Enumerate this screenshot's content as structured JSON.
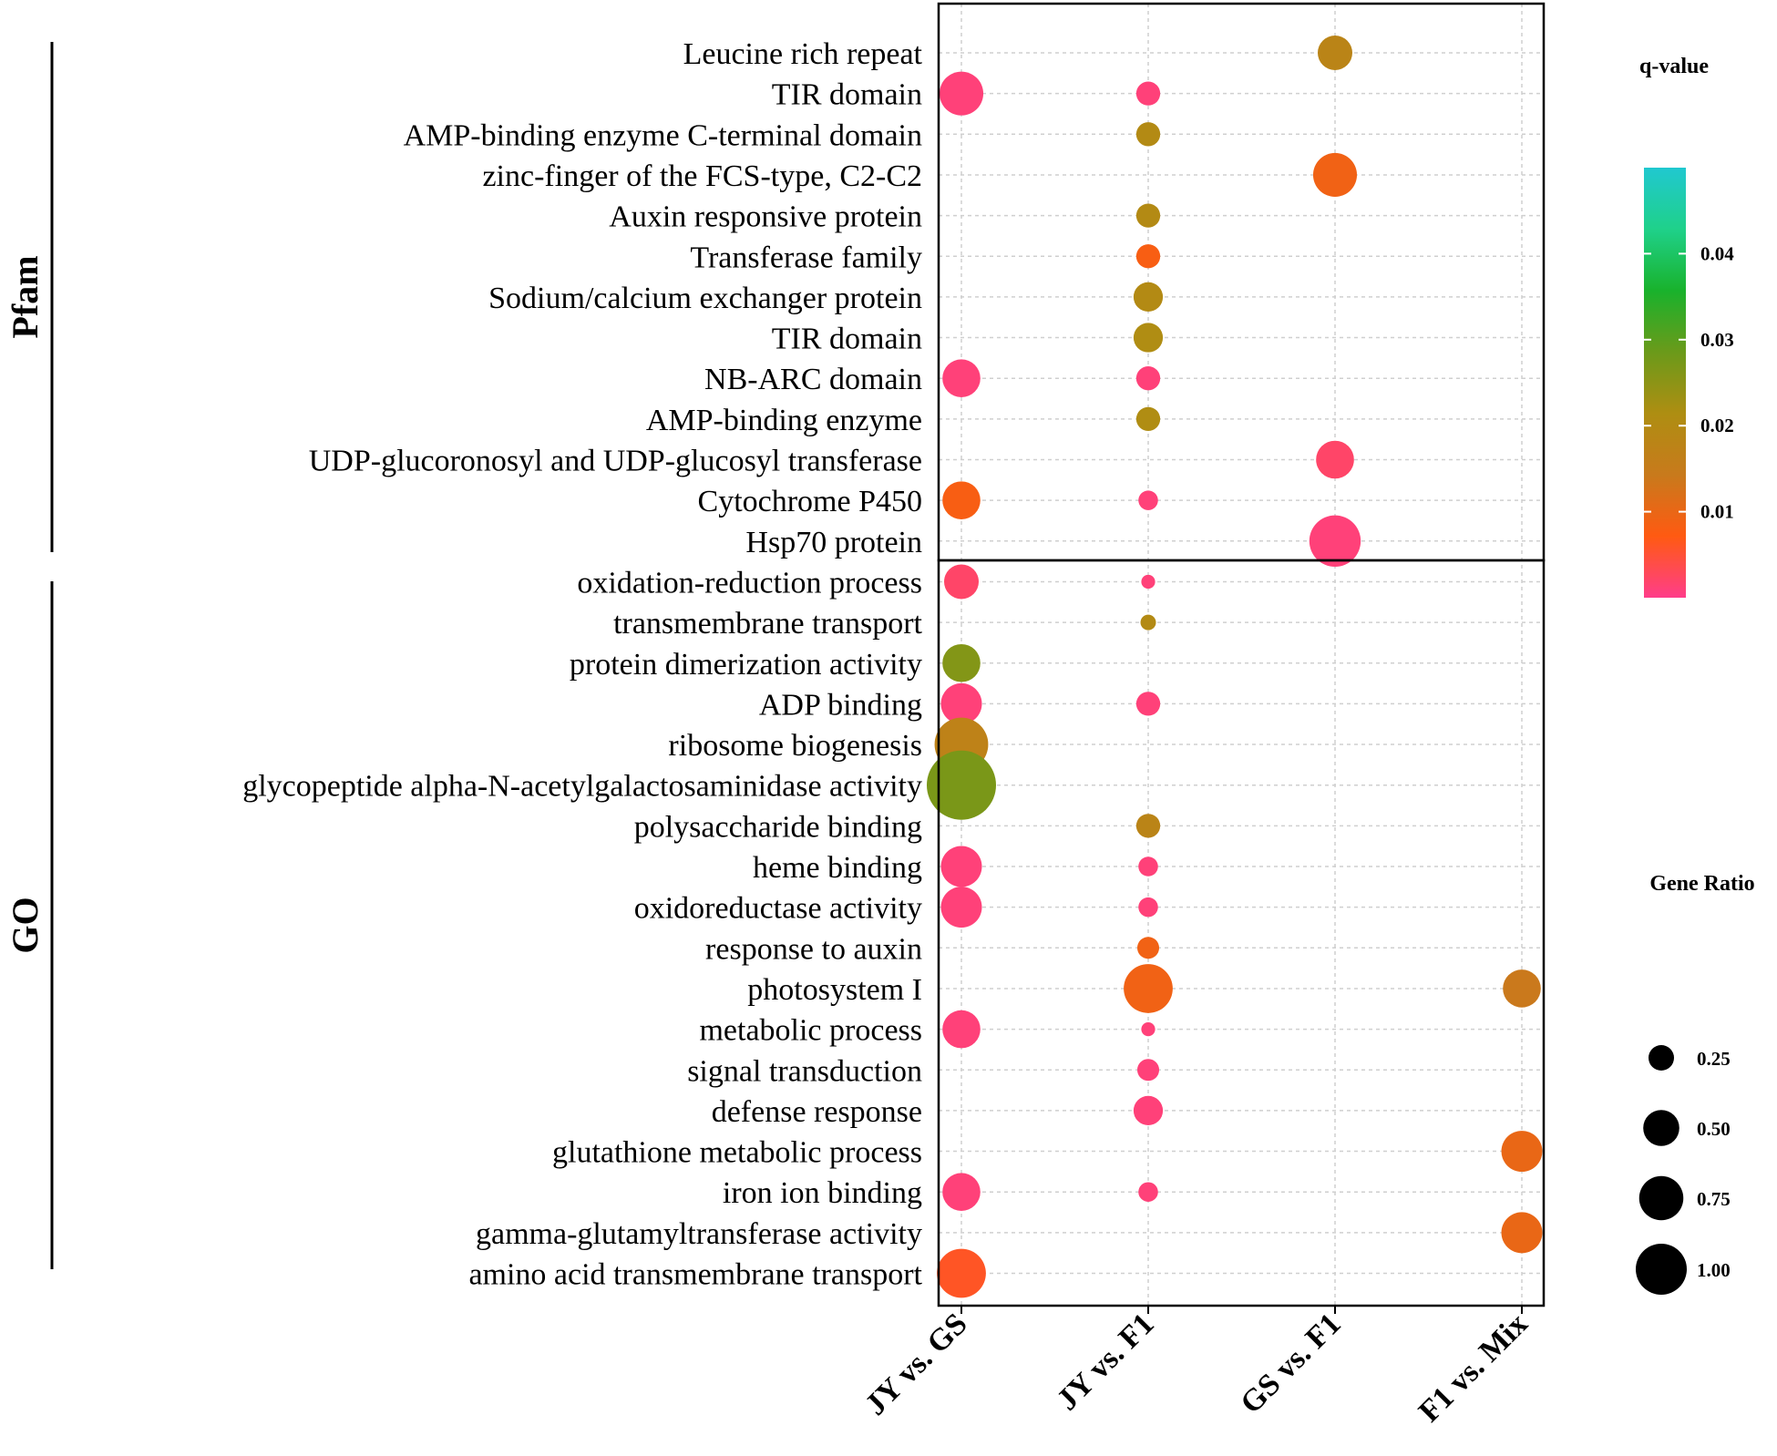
{
  "chart_data": {
    "type": "scatter",
    "title": "",
    "xlabel": "",
    "ylabel": "",
    "categories": [
      "JY vs. GS",
      "JY vs. F1",
      "GS vs. F1",
      "F1 vs. Mix"
    ],
    "groups": [
      {
        "name": "Pfam",
        "rows": [
          "Leucine rich repeat",
          "TIR domain",
          "AMP-binding enzyme C-terminal domain",
          "zinc-finger of the FCS-type, C2-C2",
          "Auxin responsive protein",
          "Transferase family",
          "Sodium/calcium exchanger protein",
          "TIR domain",
          "NB-ARC domain",
          "AMP-binding enzyme",
          "UDP-glucoronosyl and UDP-glucosyl transferase",
          "Cytochrome P450",
          "Hsp70 protein"
        ]
      },
      {
        "name": "GO",
        "rows": [
          "oxidation-reduction process",
          "transmembrane transport",
          "protein dimerization activity",
          "ADP binding",
          "ribosome biogenesis",
          "glycopeptide alpha-N-acetylgalactosaminidase activity",
          "polysaccharide binding",
          "heme binding",
          "oxidoreductase activity",
          "response to auxin",
          "photosystem I",
          "metabolic process",
          "signal transduction",
          "defense response",
          "glutathione metabolic process",
          "iron ion binding",
          "gamma-glutamyltransferase activity",
          "amino acid transmembrane transport"
        ]
      }
    ],
    "points": [
      {
        "row": 0,
        "col": 2,
        "gene_ratio": 0.25,
        "q_value": 0.018
      },
      {
        "row": 1,
        "col": 0,
        "gene_ratio": 0.4,
        "q_value": 0.001
      },
      {
        "row": 1,
        "col": 1,
        "gene_ratio": 0.12,
        "q_value": 0.001
      },
      {
        "row": 2,
        "col": 1,
        "gene_ratio": 0.12,
        "q_value": 0.02
      },
      {
        "row": 3,
        "col": 2,
        "gene_ratio": 0.4,
        "q_value": 0.009
      },
      {
        "row": 4,
        "col": 1,
        "gene_ratio": 0.12,
        "q_value": 0.02
      },
      {
        "row": 5,
        "col": 1,
        "gene_ratio": 0.12,
        "q_value": 0.008
      },
      {
        "row": 6,
        "col": 1,
        "gene_ratio": 0.18,
        "q_value": 0.02
      },
      {
        "row": 7,
        "col": 1,
        "gene_ratio": 0.18,
        "q_value": 0.021
      },
      {
        "row": 8,
        "col": 0,
        "gene_ratio": 0.3,
        "q_value": 0.001
      },
      {
        "row": 8,
        "col": 1,
        "gene_ratio": 0.12,
        "q_value": 0.001
      },
      {
        "row": 9,
        "col": 1,
        "gene_ratio": 0.12,
        "q_value": 0.021
      },
      {
        "row": 10,
        "col": 2,
        "gene_ratio": 0.3,
        "q_value": 0.002
      },
      {
        "row": 11,
        "col": 0,
        "gene_ratio": 0.3,
        "q_value": 0.008
      },
      {
        "row": 11,
        "col": 1,
        "gene_ratio": 0.08,
        "q_value": 0.001
      },
      {
        "row": 12,
        "col": 2,
        "gene_ratio": 0.55,
        "q_value": 0.001
      },
      {
        "row": 13,
        "col": 0,
        "gene_ratio": 0.25,
        "q_value": 0.002
      },
      {
        "row": 13,
        "col": 1,
        "gene_ratio": 0.04,
        "q_value": 0.001
      },
      {
        "row": 14,
        "col": 1,
        "gene_ratio": 0.05,
        "q_value": 0.02
      },
      {
        "row": 15,
        "col": 0,
        "gene_ratio": 0.3,
        "q_value": 0.026
      },
      {
        "row": 16,
        "col": 0,
        "gene_ratio": 0.35,
        "q_value": 0.001
      },
      {
        "row": 16,
        "col": 1,
        "gene_ratio": 0.12,
        "q_value": 0.001
      },
      {
        "row": 17,
        "col": 0,
        "gene_ratio": 0.6,
        "q_value": 0.017
      },
      {
        "row": 18,
        "col": 0,
        "gene_ratio": 1.0,
        "q_value": 0.027
      },
      {
        "row": 19,
        "col": 1,
        "gene_ratio": 0.12,
        "q_value": 0.018
      },
      {
        "row": 20,
        "col": 0,
        "gene_ratio": 0.35,
        "q_value": 0.001
      },
      {
        "row": 20,
        "col": 1,
        "gene_ratio": 0.08,
        "q_value": 0.001
      },
      {
        "row": 21,
        "col": 0,
        "gene_ratio": 0.35,
        "q_value": 0.001
      },
      {
        "row": 21,
        "col": 1,
        "gene_ratio": 0.08,
        "q_value": 0.001
      },
      {
        "row": 22,
        "col": 1,
        "gene_ratio": 0.1,
        "q_value": 0.009
      },
      {
        "row": 23,
        "col": 1,
        "gene_ratio": 0.5,
        "q_value": 0.009
      },
      {
        "row": 23,
        "col": 3,
        "gene_ratio": 0.3,
        "q_value": 0.014
      },
      {
        "row": 24,
        "col": 0,
        "gene_ratio": 0.3,
        "q_value": 0.001
      },
      {
        "row": 24,
        "col": 1,
        "gene_ratio": 0.04,
        "q_value": 0.001
      },
      {
        "row": 25,
        "col": 1,
        "gene_ratio": 0.1,
        "q_value": 0.001
      },
      {
        "row": 26,
        "col": 1,
        "gene_ratio": 0.18,
        "q_value": 0.001
      },
      {
        "row": 27,
        "col": 3,
        "gene_ratio": 0.35,
        "q_value": 0.01
      },
      {
        "row": 28,
        "col": 0,
        "gene_ratio": 0.3,
        "q_value": 0.001
      },
      {
        "row": 28,
        "col": 1,
        "gene_ratio": 0.08,
        "q_value": 0.001
      },
      {
        "row": 29,
        "col": 3,
        "gene_ratio": 0.35,
        "q_value": 0.01
      },
      {
        "row": 30,
        "col": 0,
        "gene_ratio": 0.5,
        "q_value": 0.006
      }
    ],
    "color_legend": {
      "title": "q-value",
      "ticks": [
        0.01,
        0.02,
        0.03,
        0.04
      ],
      "tick_labels": [
        "0.01",
        "0.02",
        "0.03",
        "0.04"
      ],
      "range": [
        0.0,
        0.05
      ],
      "colors": [
        "#FF3D8A",
        "#FF5A12",
        "#C87A1C",
        "#AE8E12",
        "#6B9A1A",
        "#19B22C",
        "#1FD18A",
        "#20C8D0"
      ]
    },
    "size_legend": {
      "title": "Gene Ratio",
      "values": [
        0.25,
        0.5,
        0.75,
        1.0
      ],
      "labels": [
        "0.25",
        "0.50",
        "0.75",
        "1.00"
      ]
    },
    "grid": true
  }
}
